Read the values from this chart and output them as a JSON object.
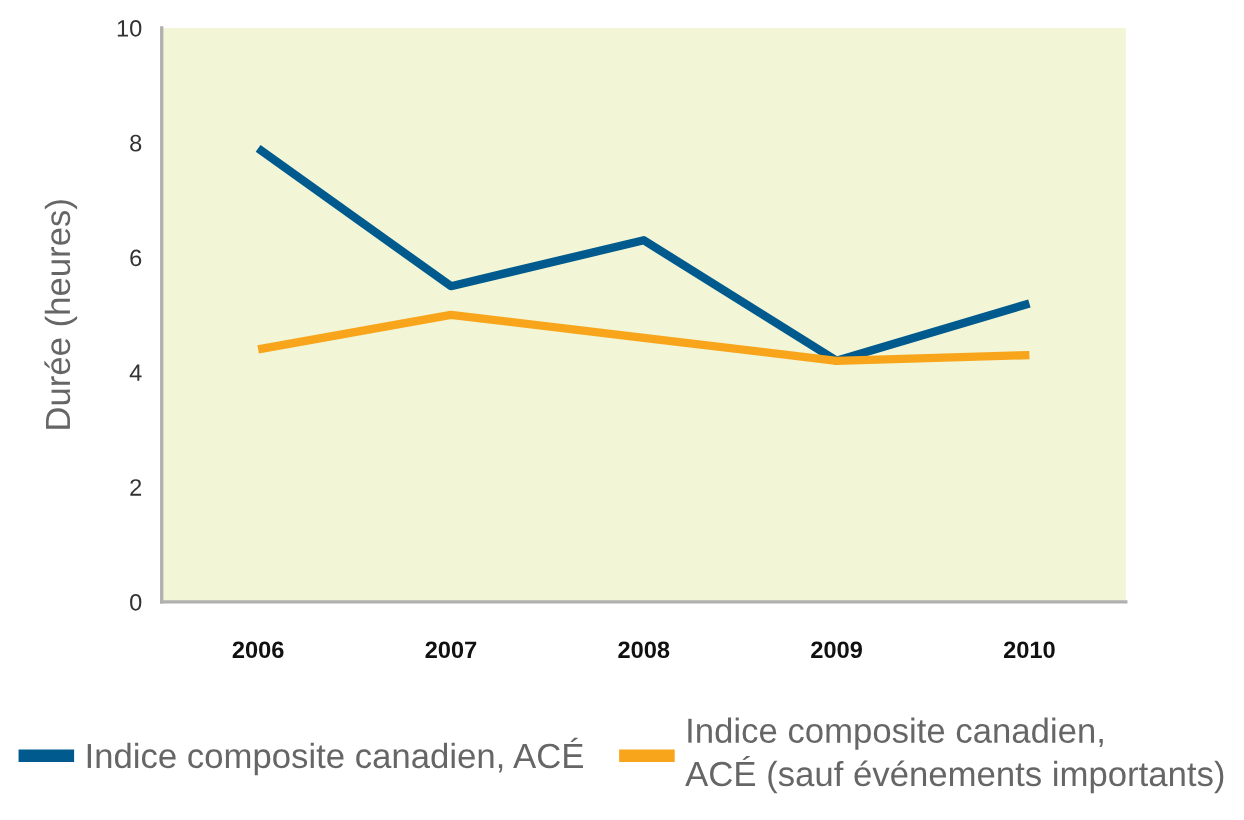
{
  "chart_data": {
    "type": "line",
    "ylabel": "Durée (heures)",
    "categories": [
      "2006",
      "2007",
      "2008",
      "2009",
      "2010"
    ],
    "series": [
      {
        "name": "Indice composite canadien, ACÉ",
        "color": "#005a8e",
        "values": [
          7.9,
          5.5,
          6.3,
          4.2,
          5.2
        ]
      },
      {
        "name": "Indice composite canadien,\nACÉ (sauf événements importants)",
        "color": "#f8a51c",
        "values": [
          4.4,
          5.0,
          4.6,
          4.2,
          4.3
        ]
      }
    ],
    "ylim": [
      0,
      10
    ],
    "yticks": [
      0,
      2,
      4,
      6,
      8,
      10
    ],
    "grid": false,
    "legend": "bottom",
    "marker": "none",
    "line_style": "solid"
  }
}
